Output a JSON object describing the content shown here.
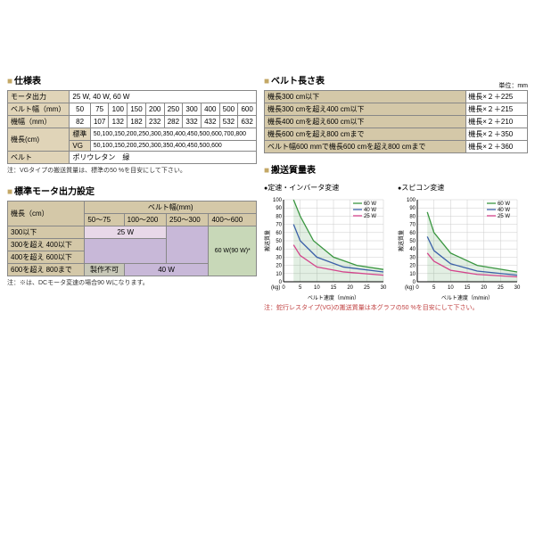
{
  "spec_table": {
    "title": "仕様表",
    "rows": [
      {
        "label": "モータ出力",
        "value": "25 W, 40 W, 60 W"
      },
      {
        "label": "ベルト幅（mm）",
        "values": [
          "50",
          "75",
          "100",
          "150",
          "200",
          "250",
          "300",
          "400",
          "500",
          "600"
        ]
      },
      {
        "label": "機幅（mm）",
        "values": [
          "82",
          "107",
          "132",
          "182",
          "232",
          "282",
          "332",
          "432",
          "532",
          "632"
        ]
      },
      {
        "label": "機長(cm)",
        "sub1": "標準",
        "val1": "50,100,150,200,250,300,350,400,450,500,600,700,800",
        "sub2": "VG",
        "val2": "50,100,150,200,250,300,350,400,450,500,600"
      },
      {
        "label": "ベルト",
        "value": "ポリウレタン　緑"
      }
    ],
    "footnote": "注：VGタイプの搬送質量は、標準の50 %を目安にして下さい。"
  },
  "motor_table": {
    "title": "標準モータ出力設定",
    "col_header": "ベルト幅(mm)",
    "row_header": "機長（cm）",
    "cols": [
      "50～75",
      "100～200",
      "250～300",
      "400～600"
    ],
    "rows": [
      "300以下",
      "300を超え 400以下",
      "400を超え 600以下",
      "600を超え 800まで"
    ],
    "val_25": "25 W",
    "val_40": "40 W",
    "val_60": "60 W(90 W)*",
    "val_na": "製作不可",
    "footnote": "注：※は、DCモータ変速の場合90 Wになります。"
  },
  "belt_length": {
    "title": "ベルト長さ表",
    "unit": "単位：mm",
    "rows": [
      {
        "cond": "機長300 cm以下",
        "formula": "機長×２＋225"
      },
      {
        "cond": "機長300 cmを超え400 cm以下",
        "formula": "機長×２＋215"
      },
      {
        "cond": "機長400 cmを超え600 cm以下",
        "formula": "機長×２＋210"
      },
      {
        "cond": "機長600 cmを超え800 cmまで",
        "formula": "機長×２＋350"
      },
      {
        "cond": "ベルト幅600 mmで機長600 cmを超え800 cmまで",
        "formula": "機長×２＋360"
      }
    ]
  },
  "transport": {
    "title": "搬送質量表",
    "chart1_title": "定速・インバータ変速",
    "chart2_title": "スピコン変速",
    "xlabel": "ベルト速度（m/min）",
    "ylabel": "搬送質量",
    "ylabel_unit": "(kg)",
    "legend": [
      "60 W",
      "40 W",
      "25 W"
    ],
    "colors": {
      "60w": "#3a9640",
      "40w": "#3a5fa8",
      "25w": "#d4458c"
    },
    "xlim": [
      0,
      30
    ],
    "xtick": 5,
    "ylim": [
      0,
      100
    ],
    "ytick": 10,
    "chart1": {
      "60w": [
        [
          3,
          100
        ],
        [
          5,
          80
        ],
        [
          9,
          50
        ],
        [
          15,
          30
        ],
        [
          22,
          20
        ],
        [
          30,
          15
        ]
      ],
      "40w": [
        [
          3,
          70
        ],
        [
          5,
          50
        ],
        [
          10,
          30
        ],
        [
          18,
          18
        ],
        [
          30,
          12
        ]
      ],
      "25w": [
        [
          3,
          45
        ],
        [
          5,
          32
        ],
        [
          10,
          18
        ],
        [
          18,
          12
        ],
        [
          30,
          8
        ]
      ]
    },
    "chart2": {
      "60w": [
        [
          3,
          85
        ],
        [
          5,
          60
        ],
        [
          10,
          35
        ],
        [
          18,
          20
        ],
        [
          30,
          12
        ]
      ],
      "40w": [
        [
          3,
          55
        ],
        [
          5,
          38
        ],
        [
          10,
          22
        ],
        [
          18,
          13
        ],
        [
          30,
          8
        ]
      ],
      "25w": [
        [
          3,
          35
        ],
        [
          5,
          25
        ],
        [
          10,
          14
        ],
        [
          18,
          9
        ],
        [
          30,
          6
        ]
      ]
    },
    "footnote": "注：蛇行レスタイプ(VG)の搬送質量は本グラフの50 %を目安にして下さい。"
  }
}
